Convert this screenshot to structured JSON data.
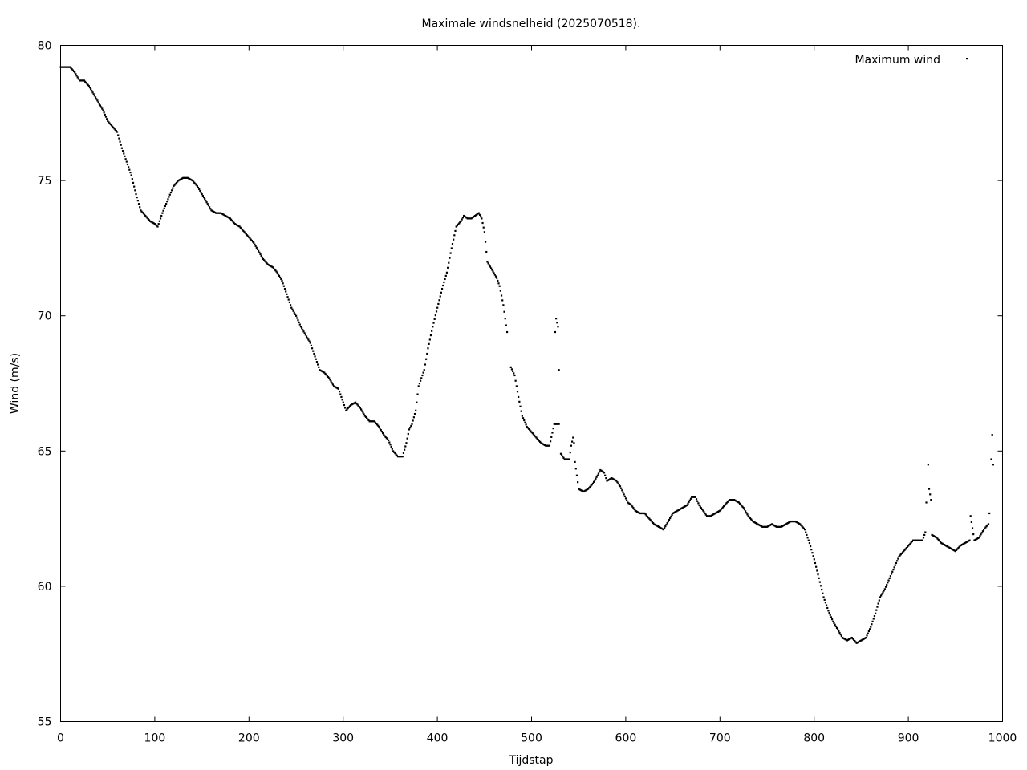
{
  "chart_data": {
    "type": "scatter",
    "title": "Maximale windsnelheid (2025070518).",
    "xlabel": "Tijdstap",
    "ylabel": "Wind (m/s)",
    "xlim": [
      0,
      1000
    ],
    "ylim": [
      55,
      80
    ],
    "xticks": [
      0,
      100,
      200,
      300,
      400,
      500,
      600,
      700,
      800,
      900,
      1000
    ],
    "yticks": [
      55,
      60,
      65,
      70,
      75,
      80
    ],
    "grid": false,
    "legend_position": "top-right",
    "series": [
      {
        "name": "Maximum wind",
        "color": "#000000",
        "marker": "dot",
        "points": [
          [
            0,
            79.2
          ],
          [
            10,
            79.2
          ],
          [
            15,
            79.0
          ],
          [
            20,
            78.7
          ],
          [
            25,
            78.7
          ],
          [
            30,
            78.5
          ],
          [
            35,
            78.2
          ],
          [
            40,
            77.9
          ],
          [
            45,
            77.6
          ],
          [
            50,
            77.2
          ],
          [
            55,
            77.0
          ],
          [
            60,
            76.8
          ],
          [
            65,
            76.2
          ],
          [
            70,
            75.7
          ],
          [
            75,
            75.2
          ],
          [
            80,
            74.5
          ],
          [
            85,
            73.9
          ],
          [
            90,
            73.7
          ],
          [
            95,
            73.5
          ],
          [
            100,
            73.4
          ],
          [
            103,
            73.3
          ],
          [
            108,
            73.8
          ],
          [
            115,
            74.4
          ],
          [
            120,
            74.8
          ],
          [
            125,
            75.0
          ],
          [
            130,
            75.1
          ],
          [
            135,
            75.1
          ],
          [
            140,
            75.0
          ],
          [
            145,
            74.8
          ],
          [
            150,
            74.5
          ],
          [
            155,
            74.2
          ],
          [
            160,
            73.9
          ],
          [
            165,
            73.8
          ],
          [
            170,
            73.8
          ],
          [
            175,
            73.7
          ],
          [
            180,
            73.6
          ],
          [
            185,
            73.4
          ],
          [
            190,
            73.3
          ],
          [
            195,
            73.1
          ],
          [
            200,
            72.9
          ],
          [
            205,
            72.7
          ],
          [
            210,
            72.4
          ],
          [
            215,
            72.1
          ],
          [
            220,
            71.9
          ],
          [
            225,
            71.8
          ],
          [
            230,
            71.6
          ],
          [
            235,
            71.3
          ],
          [
            240,
            70.8
          ],
          [
            245,
            70.3
          ],
          [
            250,
            70.0
          ],
          [
            255,
            69.6
          ],
          [
            260,
            69.3
          ],
          [
            265,
            69.0
          ],
          [
            270,
            68.5
          ],
          [
            275,
            68.0
          ],
          [
            280,
            67.9
          ],
          [
            285,
            67.7
          ],
          [
            290,
            67.4
          ],
          [
            295,
            67.3
          ],
          [
            300,
            66.8
          ],
          [
            303,
            66.5
          ],
          [
            308,
            66.7
          ],
          [
            313,
            66.8
          ],
          [
            318,
            66.6
          ],
          [
            323,
            66.3
          ],
          [
            328,
            66.1
          ],
          [
            333,
            66.1
          ],
          [
            338,
            65.9
          ],
          [
            343,
            65.6
          ],
          [
            348,
            65.4
          ],
          [
            353,
            65.0
          ],
          [
            358,
            64.8
          ],
          [
            363,
            64.8
          ],
          [
            367,
            65.3
          ],
          [
            370,
            65.8
          ],
          [
            373,
            66.0
          ],
          [
            377,
            66.5
          ],
          [
            380,
            67.4
          ],
          [
            383,
            67.7
          ],
          [
            386,
            68.0
          ],
          [
            390,
            68.8
          ],
          [
            395,
            69.6
          ],
          [
            400,
            70.3
          ],
          [
            405,
            71.0
          ],
          [
            410,
            71.6
          ],
          [
            415,
            72.5
          ],
          [
            420,
            73.3
          ],
          [
            425,
            73.5
          ],
          [
            428,
            73.7
          ],
          [
            432,
            73.6
          ],
          [
            436,
            73.6
          ],
          [
            440,
            73.7
          ],
          [
            444,
            73.8
          ],
          [
            447,
            73.6
          ],
          [
            450,
            73.1
          ],
          [
            453,
            72.0
          ],
          [
            458,
            71.7
          ],
          [
            463,
            71.4
          ],
          [
            466,
            71.1
          ],
          [
            470,
            70.4
          ],
          [
            474,
            69.4
          ],
          [
            478,
            68.1
          ],
          [
            482,
            67.8
          ],
          [
            486,
            67.0
          ],
          [
            490,
            66.3
          ],
          [
            495,
            65.9
          ],
          [
            500,
            65.7
          ],
          [
            505,
            65.5
          ],
          [
            510,
            65.3
          ],
          [
            515,
            65.2
          ],
          [
            519,
            65.2
          ],
          [
            524,
            66.0
          ],
          [
            529,
            66.0
          ],
          [
            525,
            69.4
          ],
          [
            526,
            69.9
          ],
          [
            528,
            69.6
          ],
          [
            529,
            68.0
          ],
          [
            531,
            64.9
          ],
          [
            535,
            64.7
          ],
          [
            540,
            64.7
          ],
          [
            542,
            65.2
          ],
          [
            544,
            65.5
          ],
          [
            545,
            65.3
          ],
          [
            546,
            64.6
          ],
          [
            550,
            63.6
          ],
          [
            555,
            63.5
          ],
          [
            560,
            63.6
          ],
          [
            565,
            63.8
          ],
          [
            570,
            64.1
          ],
          [
            573,
            64.3
          ],
          [
            577,
            64.2
          ],
          [
            580,
            63.9
          ],
          [
            585,
            64.0
          ],
          [
            590,
            63.9
          ],
          [
            594,
            63.7
          ],
          [
            598,
            63.4
          ],
          [
            602,
            63.1
          ],
          [
            606,
            63.0
          ],
          [
            610,
            62.8
          ],
          [
            615,
            62.7
          ],
          [
            620,
            62.7
          ],
          [
            625,
            62.5
          ],
          [
            630,
            62.3
          ],
          [
            635,
            62.2
          ],
          [
            640,
            62.1
          ],
          [
            645,
            62.4
          ],
          [
            650,
            62.7
          ],
          [
            655,
            62.8
          ],
          [
            660,
            62.9
          ],
          [
            665,
            63.0
          ],
          [
            670,
            63.3
          ],
          [
            674,
            63.3
          ],
          [
            678,
            63.0
          ],
          [
            682,
            62.8
          ],
          [
            686,
            62.6
          ],
          [
            690,
            62.6
          ],
          [
            695,
            62.7
          ],
          [
            700,
            62.8
          ],
          [
            705,
            63.0
          ],
          [
            710,
            63.2
          ],
          [
            715,
            63.2
          ],
          [
            720,
            63.1
          ],
          [
            725,
            62.9
          ],
          [
            730,
            62.6
          ],
          [
            735,
            62.4
          ],
          [
            740,
            62.3
          ],
          [
            745,
            62.2
          ],
          [
            750,
            62.2
          ],
          [
            755,
            62.3
          ],
          [
            760,
            62.2
          ],
          [
            765,
            62.2
          ],
          [
            770,
            62.3
          ],
          [
            775,
            62.4
          ],
          [
            780,
            62.4
          ],
          [
            785,
            62.3
          ],
          [
            790,
            62.1
          ],
          [
            795,
            61.6
          ],
          [
            800,
            61.0
          ],
          [
            805,
            60.3
          ],
          [
            810,
            59.6
          ],
          [
            815,
            59.1
          ],
          [
            820,
            58.7
          ],
          [
            825,
            58.4
          ],
          [
            830,
            58.1
          ],
          [
            835,
            58.0
          ],
          [
            840,
            58.1
          ],
          [
            845,
            57.9
          ],
          [
            850,
            58.0
          ],
          [
            855,
            58.1
          ],
          [
            860,
            58.5
          ],
          [
            865,
            59.0
          ],
          [
            870,
            59.6
          ],
          [
            875,
            59.9
          ],
          [
            880,
            60.3
          ],
          [
            885,
            60.7
          ],
          [
            890,
            61.1
          ],
          [
            895,
            61.3
          ],
          [
            900,
            61.5
          ],
          [
            905,
            61.7
          ],
          [
            910,
            61.7
          ],
          [
            915,
            61.7
          ],
          [
            918,
            62.0
          ],
          [
            919,
            63.1
          ],
          [
            921,
            64.5
          ],
          [
            922,
            63.6
          ],
          [
            924,
            63.2
          ],
          [
            925,
            61.9
          ],
          [
            930,
            61.8
          ],
          [
            935,
            61.6
          ],
          [
            940,
            61.5
          ],
          [
            945,
            61.4
          ],
          [
            950,
            61.3
          ],
          [
            955,
            61.5
          ],
          [
            960,
            61.6
          ],
          [
            965,
            61.7
          ],
          [
            966,
            62.6
          ],
          [
            970,
            61.7
          ],
          [
            975,
            61.8
          ],
          [
            980,
            62.1
          ],
          [
            985,
            62.3
          ],
          [
            986,
            62.7
          ],
          [
            988,
            64.7
          ],
          [
            989,
            65.6
          ],
          [
            990,
            64.5
          ]
        ]
      }
    ]
  }
}
